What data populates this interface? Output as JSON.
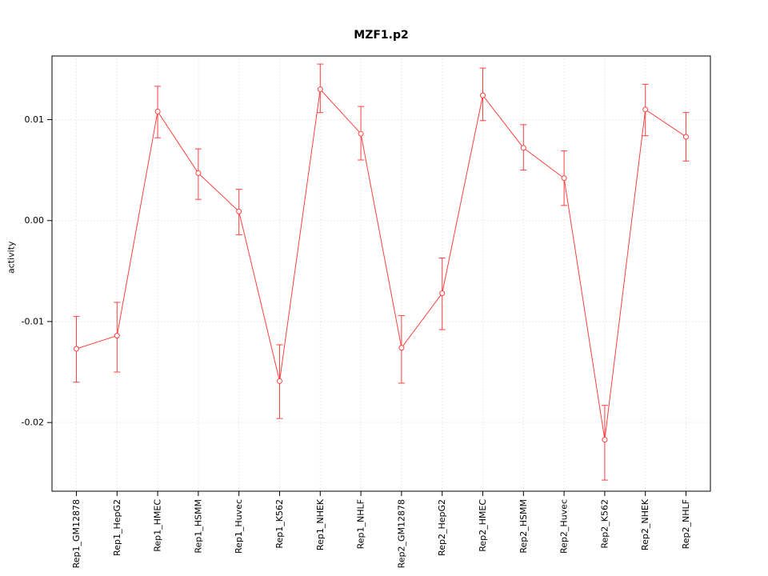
{
  "chart_data": {
    "type": "line",
    "title": "MZF1.p2",
    "xlabel": "",
    "ylabel": "activity",
    "categories": [
      "Rep1_GM12878",
      "Rep1_HepG2",
      "Rep1_HMEC",
      "Rep1_HSMM",
      "Rep1_Huvec",
      "Rep1_K562",
      "Rep1_NHEK",
      "Rep1_NHLF",
      "Rep2_GM12878",
      "Rep2_HepG2",
      "Rep2_HMEC",
      "Rep2_HSMM",
      "Rep2_Huvec",
      "Rep2_K562",
      "Rep2_NHEK",
      "Rep2_NHLF"
    ],
    "series": [
      {
        "name": "activity",
        "values": [
          -0.0127,
          -0.0114,
          0.0108,
          0.0047,
          0.0009,
          -0.0159,
          0.013,
          0.0086,
          -0.0126,
          -0.0072,
          0.0124,
          0.0072,
          0.0042,
          -0.0217,
          0.011,
          0.0083
        ],
        "upper": [
          -0.0095,
          -0.0081,
          0.0133,
          0.0071,
          0.0031,
          -0.0123,
          0.0155,
          0.0113,
          -0.0094,
          -0.0037,
          0.0151,
          0.0095,
          0.0069,
          -0.0183,
          0.0135,
          0.0107
        ],
        "lower": [
          -0.016,
          -0.015,
          0.0082,
          0.0021,
          -0.0014,
          -0.0196,
          0.0107,
          0.006,
          -0.0161,
          -0.0108,
          0.0099,
          0.005,
          0.0015,
          -0.0257,
          0.0084,
          0.0059
        ]
      }
    ],
    "yticks": [
      0.01,
      0.0,
      -0.01,
      -0.02
    ],
    "ytick_labels": [
      "0.01",
      "0.00",
      "-0.01",
      "-0.02"
    ],
    "ylim": [
      -0.0268,
      0.0163
    ],
    "grid": true,
    "legend": "none",
    "point_style": "open-circle",
    "error_bars": true,
    "colors": {
      "series": "#ff4040",
      "grid": "#d9d9d9",
      "axis": "#000000",
      "background": "#ffffff"
    }
  }
}
